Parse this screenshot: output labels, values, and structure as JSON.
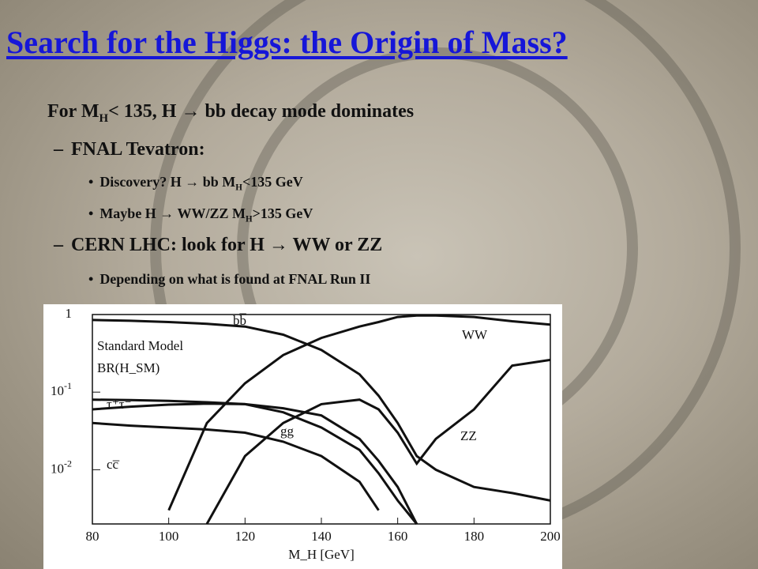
{
  "header": {
    "title": "Search for the Higgs: the Origin of Mass?"
  },
  "bullets": [
    {
      "pre": "For M",
      "sub": "H",
      "post": "< 135, H → bb decay mode dominates"
    },
    {
      "text": "FNAL Tevatron:"
    },
    {
      "pre": "Discovery? H → bb  M",
      "sub": "H",
      "post": "<135 GeV"
    },
    {
      "pre": "Maybe H → WW/ZZ M",
      "sub": "H",
      "post": ">135 GeV"
    },
    {
      "text": "CERN LHC: look for H → WW or ZZ"
    },
    {
      "text": "Depending on what is found at FNAL Run II"
    }
  ],
  "chart_data": {
    "type": "line",
    "log_y": true,
    "annotations": [
      "Standard Model",
      "BR(H_SM)"
    ],
    "x_label": "M_H [GeV]",
    "x": [
      80,
      90,
      100,
      110,
      120,
      130,
      140,
      150,
      155,
      160,
      165,
      170,
      180,
      190,
      200
    ],
    "series": [
      {
        "name": "bb̅",
        "color": "#111",
        "values": [
          0.85,
          0.83,
          0.8,
          0.76,
          0.7,
          0.55,
          0.35,
          0.17,
          0.09,
          0.04,
          0.015,
          0.01,
          0.006,
          0.005,
          0.004
        ]
      },
      {
        "name": "WW",
        "color": "#111",
        "values": [
          null,
          null,
          0.003,
          0.04,
          0.13,
          0.3,
          0.5,
          0.7,
          0.8,
          0.93,
          0.97,
          0.97,
          0.93,
          0.82,
          0.74
        ]
      },
      {
        "name": "ZZ",
        "color": "#111",
        "values": [
          null,
          null,
          null,
          0.002,
          0.015,
          0.04,
          0.07,
          0.08,
          0.06,
          0.03,
          0.012,
          0.025,
          0.06,
          0.22,
          0.26
        ]
      },
      {
        "name": "τ⁺τ⁻",
        "color": "#111",
        "values": [
          0.08,
          0.079,
          0.077,
          0.074,
          0.07,
          0.055,
          0.035,
          0.018,
          0.009,
          0.004,
          0.002,
          null,
          null,
          null,
          null
        ]
      },
      {
        "name": "gg",
        "color": "#111",
        "values": [
          0.06,
          0.065,
          0.069,
          0.071,
          0.07,
          0.062,
          0.05,
          0.025,
          0.013,
          0.006,
          0.002,
          null,
          null,
          null,
          null
        ]
      },
      {
        "name": "cc̅",
        "color": "#111",
        "values": [
          0.04,
          0.037,
          0.035,
          0.033,
          0.03,
          0.023,
          0.015,
          0.007,
          0.003,
          null,
          null,
          null,
          null,
          null,
          null
        ]
      }
    ],
    "xlim": [
      80,
      200
    ],
    "xticks": [
      80,
      100,
      120,
      140,
      160,
      180,
      200
    ],
    "ylim": [
      0.002,
      1
    ],
    "yticks": [
      {
        "value": 1,
        "label": "1"
      },
      {
        "value": 0.1,
        "label": "10",
        "exponent": "-1"
      },
      {
        "value": 0.01,
        "label": "10",
        "exponent": "-2"
      }
    ]
  }
}
